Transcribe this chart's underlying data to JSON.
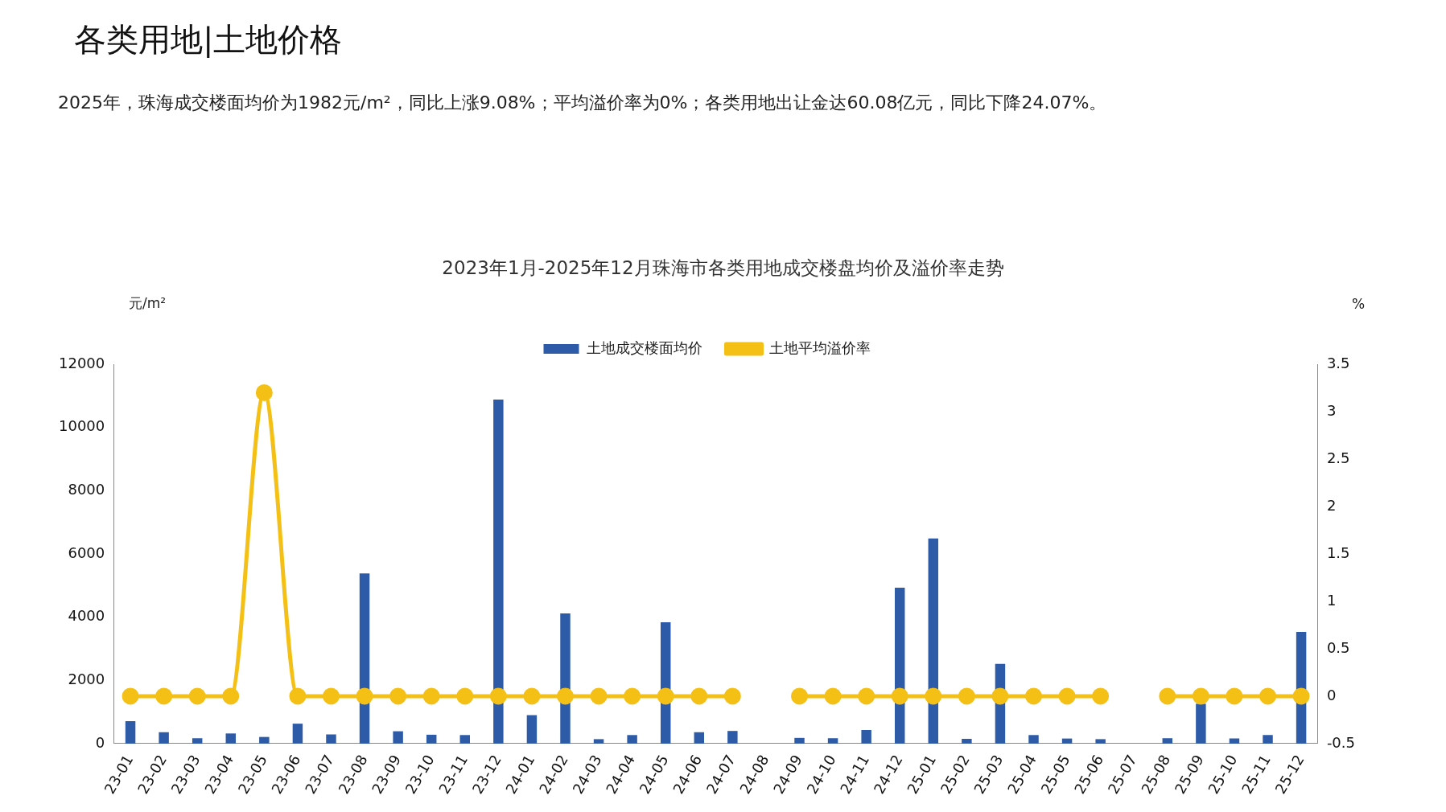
{
  "chart_data": {
    "type": "bar",
    "title": "2023年1月-2025年12月珠海市各类用地成交楼盘均价及溢价率走势",
    "annotations": [
      "各类用地|土地价格",
      "2025年，珠海成交楼面均价为1982元/m²，同比上涨9.08%；平均溢价率为0%；各类用地出让金达60.08亿元，同比下降24.07%。"
    ],
    "ylabel": "元/m²",
    "y2label": "%",
    "categories": [
      "23-01",
      "23-02",
      "23-03",
      "23-04",
      "23-05",
      "23-06",
      "23-07",
      "23-08",
      "23-09",
      "23-10",
      "23-11",
      "23-12",
      "24-01",
      "24-02",
      "24-03",
      "24-04",
      "24-05",
      "24-06",
      "24-07",
      "24-08",
      "24-09",
      "24-10",
      "24-11",
      "24-12",
      "25-01",
      "25-02",
      "25-03",
      "25-04",
      "25-05",
      "25-06",
      "25-07",
      "25-08",
      "25-09",
      "25-10",
      "25-11",
      "25-12"
    ],
    "series": [
      {
        "name": "土地成交楼面均价",
        "color": "#2e5ba8",
        "values": [
          710,
          360,
          170,
          320,
          210,
          630,
          290,
          5380,
          390,
          280,
          270,
          10880,
          900,
          4120,
          140,
          270,
          3840,
          360,
          400,
          null,
          180,
          170,
          430,
          4930,
          6490,
          150,
          2520,
          270,
          160,
          140,
          null,
          170,
          1260,
          160,
          270,
          3530
        ]
      },
      {
        "name": "土地平均溢价率",
        "type": "line",
        "axis": "y2",
        "color": "#f5c016",
        "marker": "circle",
        "values": [
          0,
          0,
          0,
          0,
          3.2,
          0,
          0,
          0,
          0,
          0,
          0,
          0,
          0,
          0,
          0,
          0,
          0,
          0,
          0,
          null,
          0,
          0,
          0,
          0,
          0,
          0,
          0,
          0,
          0,
          0,
          null,
          0,
          0,
          0,
          0,
          0
        ]
      }
    ],
    "ylim": [
      0,
      12000
    ],
    "yticks": [
      0,
      2000,
      4000,
      6000,
      8000,
      10000,
      12000
    ],
    "y2lim": [
      -0.5,
      3.5
    ],
    "y2ticks": [
      -0.5,
      0,
      0.5,
      1,
      1.5,
      2,
      2.5,
      3,
      3.5
    ],
    "grid": false,
    "legend": "top"
  }
}
